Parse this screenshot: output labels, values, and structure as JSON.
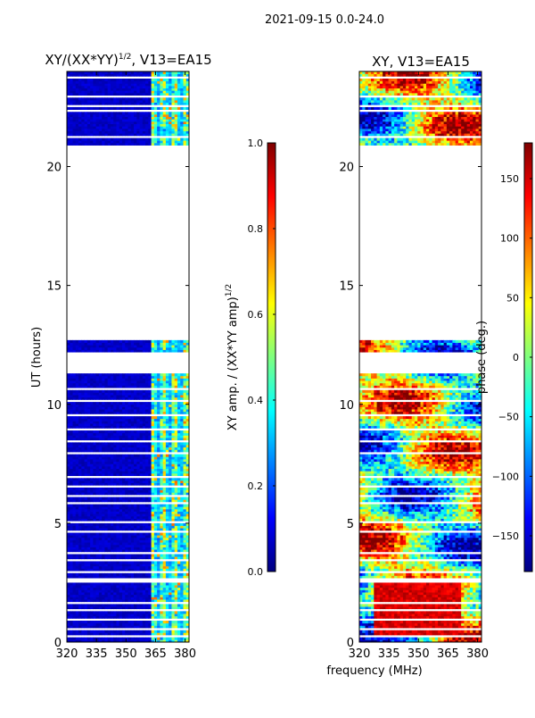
{
  "figure": {
    "suptitle": "2021-09-15 0.0-24.0",
    "xlabel": "frequency (MHz)"
  },
  "colors": {
    "jet": [
      "#00007f",
      "#0000ff",
      "#007fff",
      "#00ffff",
      "#7fff7f",
      "#ffff00",
      "#ff7f00",
      "#ff0000",
      "#7f0000"
    ],
    "flag": "#ffffff",
    "axis": "#000000"
  },
  "chart_data": [
    {
      "type": "heatmap",
      "title": "XY/(XX*YY)^{1/2}, V13=EA15",
      "title_main": "XY/(XX*YY)",
      "title_exp": "1/2",
      "title_tail": ", V13=EA15",
      "xlabel": "",
      "ylabel": "UT (hours)",
      "xlim": [
        320,
        382
      ],
      "ylim": [
        0,
        24
      ],
      "xticks": [
        "320",
        "335",
        "350",
        "365",
        "380"
      ],
      "xtick_values": [
        320,
        335,
        350,
        365,
        380
      ],
      "yticks": [
        "0",
        "5",
        "10",
        "15",
        "20"
      ],
      "ytick_values": [
        0,
        5,
        10,
        15,
        20
      ],
      "flagged_ut_ranges": [
        [
          0.22,
          0.3
        ],
        [
          0.55,
          0.62
        ],
        [
          0.88,
          1.0
        ],
        [
          1.3,
          1.38
        ],
        [
          1.62,
          1.7
        ],
        [
          2.5,
          2.7
        ],
        [
          2.95,
          3.02
        ],
        [
          3.45,
          3.55
        ],
        [
          3.7,
          3.78
        ],
        [
          4.6,
          4.66
        ],
        [
          5.05,
          5.12
        ],
        [
          5.48,
          5.55
        ],
        [
          5.8,
          5.86
        ],
        [
          6.1,
          6.16
        ],
        [
          6.5,
          6.58
        ],
        [
          6.88,
          6.95
        ],
        [
          7.9,
          8.0
        ],
        [
          8.4,
          8.5
        ],
        [
          8.9,
          8.98
        ],
        [
          9.5,
          9.58
        ],
        [
          10.1,
          10.2
        ],
        [
          10.6,
          10.7
        ],
        [
          11.3,
          12.15
        ],
        [
          12.75,
          20.9
        ],
        [
          21.2,
          21.26
        ],
        [
          22.3,
          22.38
        ],
        [
          22.5,
          22.65
        ],
        [
          22.95,
          23.02
        ],
        [
          23.38,
          23.45
        ],
        [
          23.7,
          23.78
        ]
      ],
      "pattern": "amplitude",
      "colorbar": {
        "label": "XY amp. / (XX*YY amp)^{1/2}",
        "label_main": "XY amp. / (XX*YY amp)",
        "label_exp": "1/2",
        "min": 0.0,
        "max": 1.0,
        "ticks": [
          "0.0",
          "0.2",
          "0.4",
          "0.6",
          "0.8",
          "1.0"
        ],
        "tick_values": [
          0.0,
          0.2,
          0.4,
          0.6,
          0.8,
          1.0
        ]
      }
    },
    {
      "type": "heatmap",
      "title": "XY, V13=EA15",
      "xlabel": "",
      "ylabel": "",
      "xlim": [
        320,
        382
      ],
      "ylim": [
        0,
        24
      ],
      "xticks": [
        "320",
        "335",
        "350",
        "365",
        "380"
      ],
      "xtick_values": [
        320,
        335,
        350,
        365,
        380
      ],
      "yticks": [
        "0",
        "5",
        "10",
        "15",
        "20"
      ],
      "ytick_values": [
        0,
        5,
        10,
        15,
        20
      ],
      "flagged_ut_ranges": [
        [
          0.22,
          0.3
        ],
        [
          0.55,
          0.62
        ],
        [
          0.88,
          1.0
        ],
        [
          1.3,
          1.38
        ],
        [
          1.62,
          1.7
        ],
        [
          2.5,
          2.7
        ],
        [
          2.95,
          3.02
        ],
        [
          3.45,
          3.55
        ],
        [
          3.7,
          3.78
        ],
        [
          4.6,
          4.66
        ],
        [
          5.05,
          5.12
        ],
        [
          5.48,
          5.55
        ],
        [
          5.8,
          5.86
        ],
        [
          6.1,
          6.16
        ],
        [
          6.5,
          6.58
        ],
        [
          6.88,
          6.95
        ],
        [
          7.9,
          8.0
        ],
        [
          8.4,
          8.5
        ],
        [
          8.9,
          8.98
        ],
        [
          9.5,
          9.58
        ],
        [
          10.1,
          10.2
        ],
        [
          10.6,
          10.7
        ],
        [
          11.3,
          12.15
        ],
        [
          12.75,
          20.9
        ],
        [
          21.2,
          21.26
        ],
        [
          22.3,
          22.38
        ],
        [
          22.5,
          22.65
        ],
        [
          22.95,
          23.02
        ],
        [
          23.38,
          23.45
        ],
        [
          23.7,
          23.78
        ]
      ],
      "pattern": "phase",
      "colorbar": {
        "label": "phase (deg.)",
        "min": -180,
        "max": 180,
        "ticks": [
          "−150",
          "−100",
          "−50",
          "0",
          "50",
          "100",
          "150"
        ],
        "tick_values": [
          -150,
          -100,
          -50,
          0,
          50,
          100,
          150
        ]
      }
    }
  ]
}
